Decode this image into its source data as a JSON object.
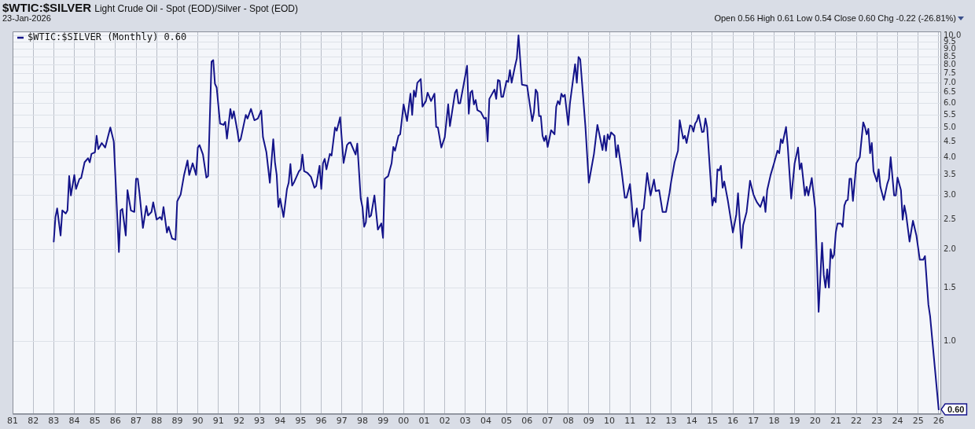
{
  "chart_data": {
    "type": "line",
    "title": "$WTIC:$SILVER",
    "subtitle": "Light Crude Oil - Spot (EOD)/Silver - Spot (EOD)",
    "annotations": [
      "23-Jan-2026",
      "Open 0.56 High 0.61 Low 0.54 Close 0.60 Chg -0.22 (-26.81%)",
      {
        "text": "0.60",
        "x": "2026-01",
        "y": 0.6
      }
    ],
    "log": "y",
    "grid": true,
    "legend": "top left",
    "tick_labels": true,
    "xlim": [
      "1981-01",
      "2026-02"
    ],
    "xticks": [
      {
        "value": "1981",
        "label": "81"
      },
      {
        "value": "1982",
        "label": "82"
      },
      {
        "value": "1983",
        "label": "83"
      },
      {
        "value": "1984",
        "label": "84"
      },
      {
        "value": "1985",
        "label": "85"
      },
      {
        "value": "1986",
        "label": "86"
      },
      {
        "value": "1987",
        "label": "87"
      },
      {
        "value": "1988",
        "label": "88"
      },
      {
        "value": "1989",
        "label": "89"
      },
      {
        "value": "1990",
        "label": "90"
      },
      {
        "value": "1991",
        "label": "91"
      },
      {
        "value": "1992",
        "label": "92"
      },
      {
        "value": "1993",
        "label": "93"
      },
      {
        "value": "1994",
        "label": "94"
      },
      {
        "value": "1995",
        "label": "95"
      },
      {
        "value": "1996",
        "label": "96"
      },
      {
        "value": "1997",
        "label": "97"
      },
      {
        "value": "1998",
        "label": "98"
      },
      {
        "value": "1999",
        "label": "99"
      },
      {
        "value": "2000",
        "label": "00"
      },
      {
        "value": "2001",
        "label": "01"
      },
      {
        "value": "2002",
        "label": "02"
      },
      {
        "value": "2003",
        "label": "03"
      },
      {
        "value": "2004",
        "label": "04"
      },
      {
        "value": "2005",
        "label": "05"
      },
      {
        "value": "2006",
        "label": "06"
      },
      {
        "value": "2007",
        "label": "07"
      },
      {
        "value": "2008",
        "label": "08"
      },
      {
        "value": "2009",
        "label": "09"
      },
      {
        "value": "2010",
        "label": "10"
      },
      {
        "value": "2011",
        "label": "11"
      },
      {
        "value": "2012",
        "label": "12"
      },
      {
        "value": "2013",
        "label": "13"
      },
      {
        "value": "2014",
        "label": "14"
      },
      {
        "value": "2015",
        "label": "15"
      },
      {
        "value": "2016",
        "label": "16"
      },
      {
        "value": "2017",
        "label": "17"
      },
      {
        "value": "2018",
        "label": "18"
      },
      {
        "value": "2019",
        "label": "19"
      },
      {
        "value": "2020",
        "label": "20"
      },
      {
        "value": "2021",
        "label": "21"
      },
      {
        "value": "2022",
        "label": "22"
      },
      {
        "value": "2023",
        "label": "23"
      },
      {
        "value": "2024",
        "label": "24"
      },
      {
        "value": "2025",
        "label": "25"
      },
      {
        "value": "2026",
        "label": "26"
      }
    ],
    "ylim": [
      0.58,
      10.3
    ],
    "yticks": [
      {
        "value": 1,
        "label": "1.0"
      },
      1.5,
      {
        "value": 2,
        "label": "2.0"
      },
      2.5,
      {
        "value": 3,
        "label": "3.0"
      },
      3.5,
      {
        "value": 4,
        "label": "4.0"
      },
      4.5,
      {
        "value": 5,
        "label": "5.0"
      },
      5.5,
      {
        "value": 6,
        "label": "6.0"
      },
      6.5,
      {
        "value": 7,
        "label": "7.0"
      },
      7.5,
      {
        "value": 8,
        "label": "8.0"
      },
      8.5,
      {
        "value": 9,
        "label": "9.0"
      },
      9.5,
      {
        "value": 10,
        "label": "10.0"
      }
    ],
    "series": [
      {
        "name": "$WTIC:$SILVER (Monthly) 0.60",
        "color": "#14148a",
        "x": [
          "1983-01",
          "1983-02",
          "1983-03",
          "1983-05",
          "1983-06",
          "1983-08",
          "1983-09",
          "1983-10",
          "1983-11",
          "1984-01",
          "1984-02",
          "1984-04",
          "1984-05",
          "1984-07",
          "1984-09",
          "1984-10",
          "1984-11",
          "1985-01",
          "1985-02",
          "1985-03",
          "1985-05",
          "1985-07",
          "1985-10",
          "1985-12",
          "1986-03",
          "1986-04",
          "1986-05",
          "1986-07",
          "1986-08",
          "1986-10",
          "1986-12",
          "1987-01",
          "1987-02",
          "1987-03",
          "1987-05",
          "1987-07",
          "1987-08",
          "1987-10",
          "1987-11",
          "1988-01",
          "1988-03",
          "1988-04",
          "1988-05",
          "1988-07",
          "1988-08",
          "1988-10",
          "1988-12",
          "1989-01",
          "1989-03",
          "1989-05",
          "1989-07",
          "1989-08",
          "1989-10",
          "1989-12",
          "1990-01",
          "1990-02",
          "1990-04",
          "1990-06",
          "1990-07",
          "1990-09",
          "1990-10",
          "1990-11",
          "1990-12",
          "1991-02",
          "1991-04",
          "1991-05",
          "1991-06",
          "1991-08",
          "1991-09",
          "1991-10",
          "1991-12",
          "1992-01",
          "1992-02",
          "1992-05",
          "1992-06",
          "1992-08",
          "1992-10",
          "1992-12",
          "1993-02",
          "1993-03",
          "1993-05",
          "1993-07",
          "1993-09",
          "1993-10",
          "1993-11",
          "1993-12",
          "1994-01",
          "1994-03",
          "1994-05",
          "1994-06",
          "1994-07",
          "1994-08",
          "1994-09",
          "1994-12",
          "1995-01",
          "1995-02",
          "1995-03",
          "1995-05",
          "1995-07",
          "1995-09",
          "1995-10",
          "1995-12",
          "1996-01",
          "1996-02",
          "1996-03",
          "1996-04",
          "1996-06",
          "1996-07",
          "1996-09",
          "1996-10",
          "1996-12",
          "1997-02",
          "1997-04",
          "1997-05",
          "1997-06",
          "1997-09",
          "1997-10",
          "1997-12",
          "1998-01",
          "1998-02",
          "1998-03",
          "1998-04",
          "1998-05",
          "1998-06",
          "1998-08",
          "1998-10",
          "1998-12",
          "1999-01",
          "1999-02",
          "1999-04",
          "1999-06",
          "1999-07",
          "1999-08",
          "1999-10",
          "1999-11",
          "2000-01",
          "2000-03",
          "2000-05",
          "2000-06",
          "2000-07",
          "2000-08",
          "2000-09",
          "2000-11",
          "2000-12",
          "2001-02",
          "2001-03",
          "2001-05",
          "2001-07",
          "2001-08",
          "2001-09",
          "2001-11",
          "2002-01",
          "2002-03",
          "2002-04",
          "2002-07",
          "2002-08",
          "2002-09",
          "2002-10",
          "2003-02",
          "2003-03",
          "2003-04",
          "2003-05",
          "2003-06",
          "2003-07",
          "2003-08",
          "2003-10",
          "2003-12",
          "2004-01",
          "2004-02",
          "2004-03",
          "2004-05",
          "2004-06",
          "2004-07",
          "2004-08",
          "2004-09",
          "2004-10",
          "2004-11",
          "2005-01",
          "2005-02",
          "2005-03",
          "2005-04",
          "2005-06",
          "2005-07",
          "2005-08",
          "2005-10",
          "2006-01",
          "2006-04",
          "2006-05",
          "2006-06",
          "2006-07",
          "2006-08",
          "2006-09",
          "2006-10",
          "2006-11",
          "2006-12",
          "2007-01",
          "2007-03",
          "2007-05",
          "2007-06",
          "2007-07",
          "2007-08",
          "2007-09",
          "2007-10",
          "2007-11",
          "2008-01",
          "2008-02",
          "2008-05",
          "2008-06",
          "2008-07",
          "2008-08",
          "2008-11",
          "2009-01",
          "2009-02",
          "2009-04",
          "2009-06",
          "2009-07",
          "2009-09",
          "2009-10",
          "2009-11",
          "2009-12",
          "2010-01",
          "2010-02",
          "2010-04",
          "2010-05",
          "2010-06",
          "2010-08",
          "2010-10",
          "2010-11",
          "2011-01",
          "2011-02",
          "2011-03",
          "2011-05",
          "2011-07",
          "2011-08",
          "2011-09",
          "2011-11",
          "2012-01",
          "2012-03",
          "2012-04",
          "2012-06",
          "2012-08",
          "2012-10",
          "2012-12",
          "2013-01",
          "2013-03",
          "2013-05",
          "2013-06",
          "2013-08",
          "2013-09",
          "2013-10",
          "2013-12",
          "2014-01",
          "2014-02",
          "2014-03",
          "2014-04",
          "2014-05",
          "2014-07",
          "2014-08",
          "2014-09",
          "2014-10",
          "2015-01",
          "2015-02",
          "2015-03",
          "2015-04",
          "2015-05",
          "2015-06",
          "2015-07",
          "2015-08",
          "2015-10",
          "2016-01",
          "2016-03",
          "2016-04",
          "2016-06",
          "2016-07",
          "2016-09",
          "2016-11",
          "2017-01",
          "2017-02",
          "2017-03",
          "2017-05",
          "2017-07",
          "2017-08",
          "2017-09",
          "2017-11",
          "2018-01",
          "2018-03",
          "2018-04",
          "2018-05",
          "2018-06",
          "2018-08",
          "2018-09",
          "2018-11",
          "2019-01",
          "2019-03",
          "2019-04",
          "2019-05",
          "2019-07",
          "2019-08",
          "2019-09",
          "2019-11",
          "2020-01",
          "2020-03",
          "2020-05",
          "2020-06",
          "2020-07",
          "2020-08",
          "2020-09",
          "2020-10",
          "2020-11",
          "2020-12",
          "2021-01",
          "2021-02",
          "2021-04",
          "2021-05",
          "2021-06",
          "2021-07",
          "2021-08",
          "2021-09",
          "2021-10",
          "2021-11",
          "2022-01",
          "2022-03",
          "2022-05",
          "2022-06",
          "2022-07",
          "2022-08",
          "2022-09",
          "2022-10",
          "2022-11",
          "2023-01",
          "2023-02",
          "2023-03",
          "2023-05",
          "2023-07",
          "2023-08",
          "2023-09",
          "2023-11",
          "2023-12",
          "2024-01",
          "2024-03",
          "2024-04",
          "2024-05",
          "2024-06",
          "2024-08",
          "2024-10",
          "2024-12",
          "2025-02",
          "2025-03",
          "2025-04",
          "2025-05",
          "2025-07",
          "2025-08",
          "2026-01"
        ],
        "values": [
          2.12,
          2.55,
          2.72,
          2.22,
          2.68,
          2.62,
          2.68,
          3.47,
          3.0,
          3.5,
          3.15,
          3.4,
          3.42,
          3.85,
          3.97,
          3.85,
          4.1,
          4.15,
          4.7,
          4.25,
          4.45,
          4.3,
          5.0,
          4.5,
          1.96,
          2.68,
          2.71,
          2.22,
          3.12,
          2.68,
          2.65,
          3.4,
          3.4,
          3.05,
          2.35,
          2.77,
          2.58,
          2.65,
          2.85,
          2.5,
          2.55,
          2.5,
          2.75,
          2.27,
          2.37,
          2.17,
          2.15,
          2.87,
          3.02,
          3.5,
          3.9,
          3.5,
          3.82,
          3.5,
          4.3,
          4.38,
          4.08,
          3.43,
          3.47,
          8.2,
          8.3,
          6.95,
          6.75,
          5.15,
          5.1,
          5.22,
          4.6,
          5.75,
          5.35,
          5.65,
          4.9,
          4.5,
          4.58,
          5.5,
          5.35,
          5.75,
          5.28,
          5.35,
          5.68,
          4.65,
          4.15,
          3.3,
          4.58,
          3.85,
          3.5,
          2.75,
          2.93,
          2.55,
          3.15,
          3.3,
          3.8,
          3.23,
          3.3,
          3.6,
          3.65,
          4.08,
          3.6,
          3.55,
          3.45,
          3.18,
          3.22,
          3.75,
          3.15,
          3.82,
          3.95,
          3.65,
          4.1,
          4.05,
          5.0,
          4.88,
          5.4,
          3.83,
          4.38,
          4.45,
          4.47,
          4.08,
          4.43,
          2.93,
          2.75,
          2.37,
          2.45,
          2.95,
          2.55,
          2.58,
          3.0,
          2.32,
          2.43,
          2.18,
          3.4,
          3.47,
          3.82,
          4.32,
          4.2,
          4.7,
          4.75,
          5.95,
          5.25,
          6.45,
          5.5,
          6.6,
          6.3,
          7.0,
          7.2,
          5.85,
          6.1,
          6.5,
          6.1,
          6.45,
          5.02,
          5.0,
          4.3,
          4.65,
          5.95,
          5.05,
          6.5,
          6.65,
          6.0,
          6.0,
          7.95,
          5.55,
          6.5,
          6.6,
          5.95,
          6.15,
          5.7,
          5.62,
          5.35,
          5.38,
          4.5,
          6.2,
          6.5,
          6.65,
          6.2,
          7.15,
          7.1,
          6.3,
          6.3,
          7.1,
          7.05,
          7.7,
          7.0,
          7.95,
          8.4,
          10.0,
          6.9,
          6.85,
          5.25,
          5.6,
          6.65,
          6.5,
          5.45,
          5.45,
          4.7,
          4.52,
          4.7,
          4.32,
          4.9,
          4.75,
          5.85,
          6.1,
          5.95,
          6.45,
          6.3,
          6.4,
          5.1,
          6.0,
          8.05,
          7.0,
          8.5,
          8.35,
          5.05,
          3.3,
          3.55,
          4.1,
          5.1,
          4.8,
          4.22,
          4.7,
          4.2,
          4.75,
          4.58,
          4.82,
          4.7,
          4.0,
          4.38,
          3.65,
          2.95,
          2.95,
          3.27,
          2.85,
          2.37,
          2.72,
          2.13,
          2.68,
          2.72,
          3.55,
          3.0,
          3.38,
          3.1,
          3.12,
          2.65,
          2.65,
          3.05,
          3.33,
          3.85,
          4.2,
          5.28,
          4.6,
          4.7,
          4.45,
          5.08,
          5.05,
          4.85,
          5.15,
          5.25,
          5.5,
          4.83,
          4.85,
          5.35,
          5.0,
          2.78,
          2.95,
          2.85,
          3.65,
          3.62,
          3.75,
          3.18,
          3.33,
          2.9,
          2.27,
          2.6,
          3.05,
          2.02,
          2.4,
          2.65,
          3.35,
          3.02,
          2.93,
          2.85,
          2.75,
          2.97,
          2.65,
          3.12,
          3.5,
          3.82,
          4.2,
          4.12,
          4.58,
          4.45,
          5.02,
          4.33,
          2.93,
          3.82,
          4.3,
          3.65,
          3.82,
          3.0,
          3.2,
          3.0,
          3.42,
          2.72,
          1.25,
          2.1,
          1.65,
          1.5,
          1.72,
          1.5,
          2.0,
          1.87,
          1.92,
          2.27,
          2.43,
          2.43,
          2.37,
          2.78,
          2.88,
          2.9,
          3.4,
          3.4,
          2.88,
          3.82,
          4.0,
          5.2,
          5.02,
          4.75,
          4.95,
          4.12,
          4.45,
          3.6,
          3.33,
          3.65,
          3.2,
          2.9,
          3.27,
          3.4,
          4.0,
          3.0,
          3.0,
          3.43,
          3.12,
          2.5,
          2.78,
          2.6,
          2.12,
          2.48,
          2.22,
          1.85,
          1.85,
          1.85,
          1.9,
          1.32,
          1.21,
          0.6
        ]
      }
    ]
  }
}
